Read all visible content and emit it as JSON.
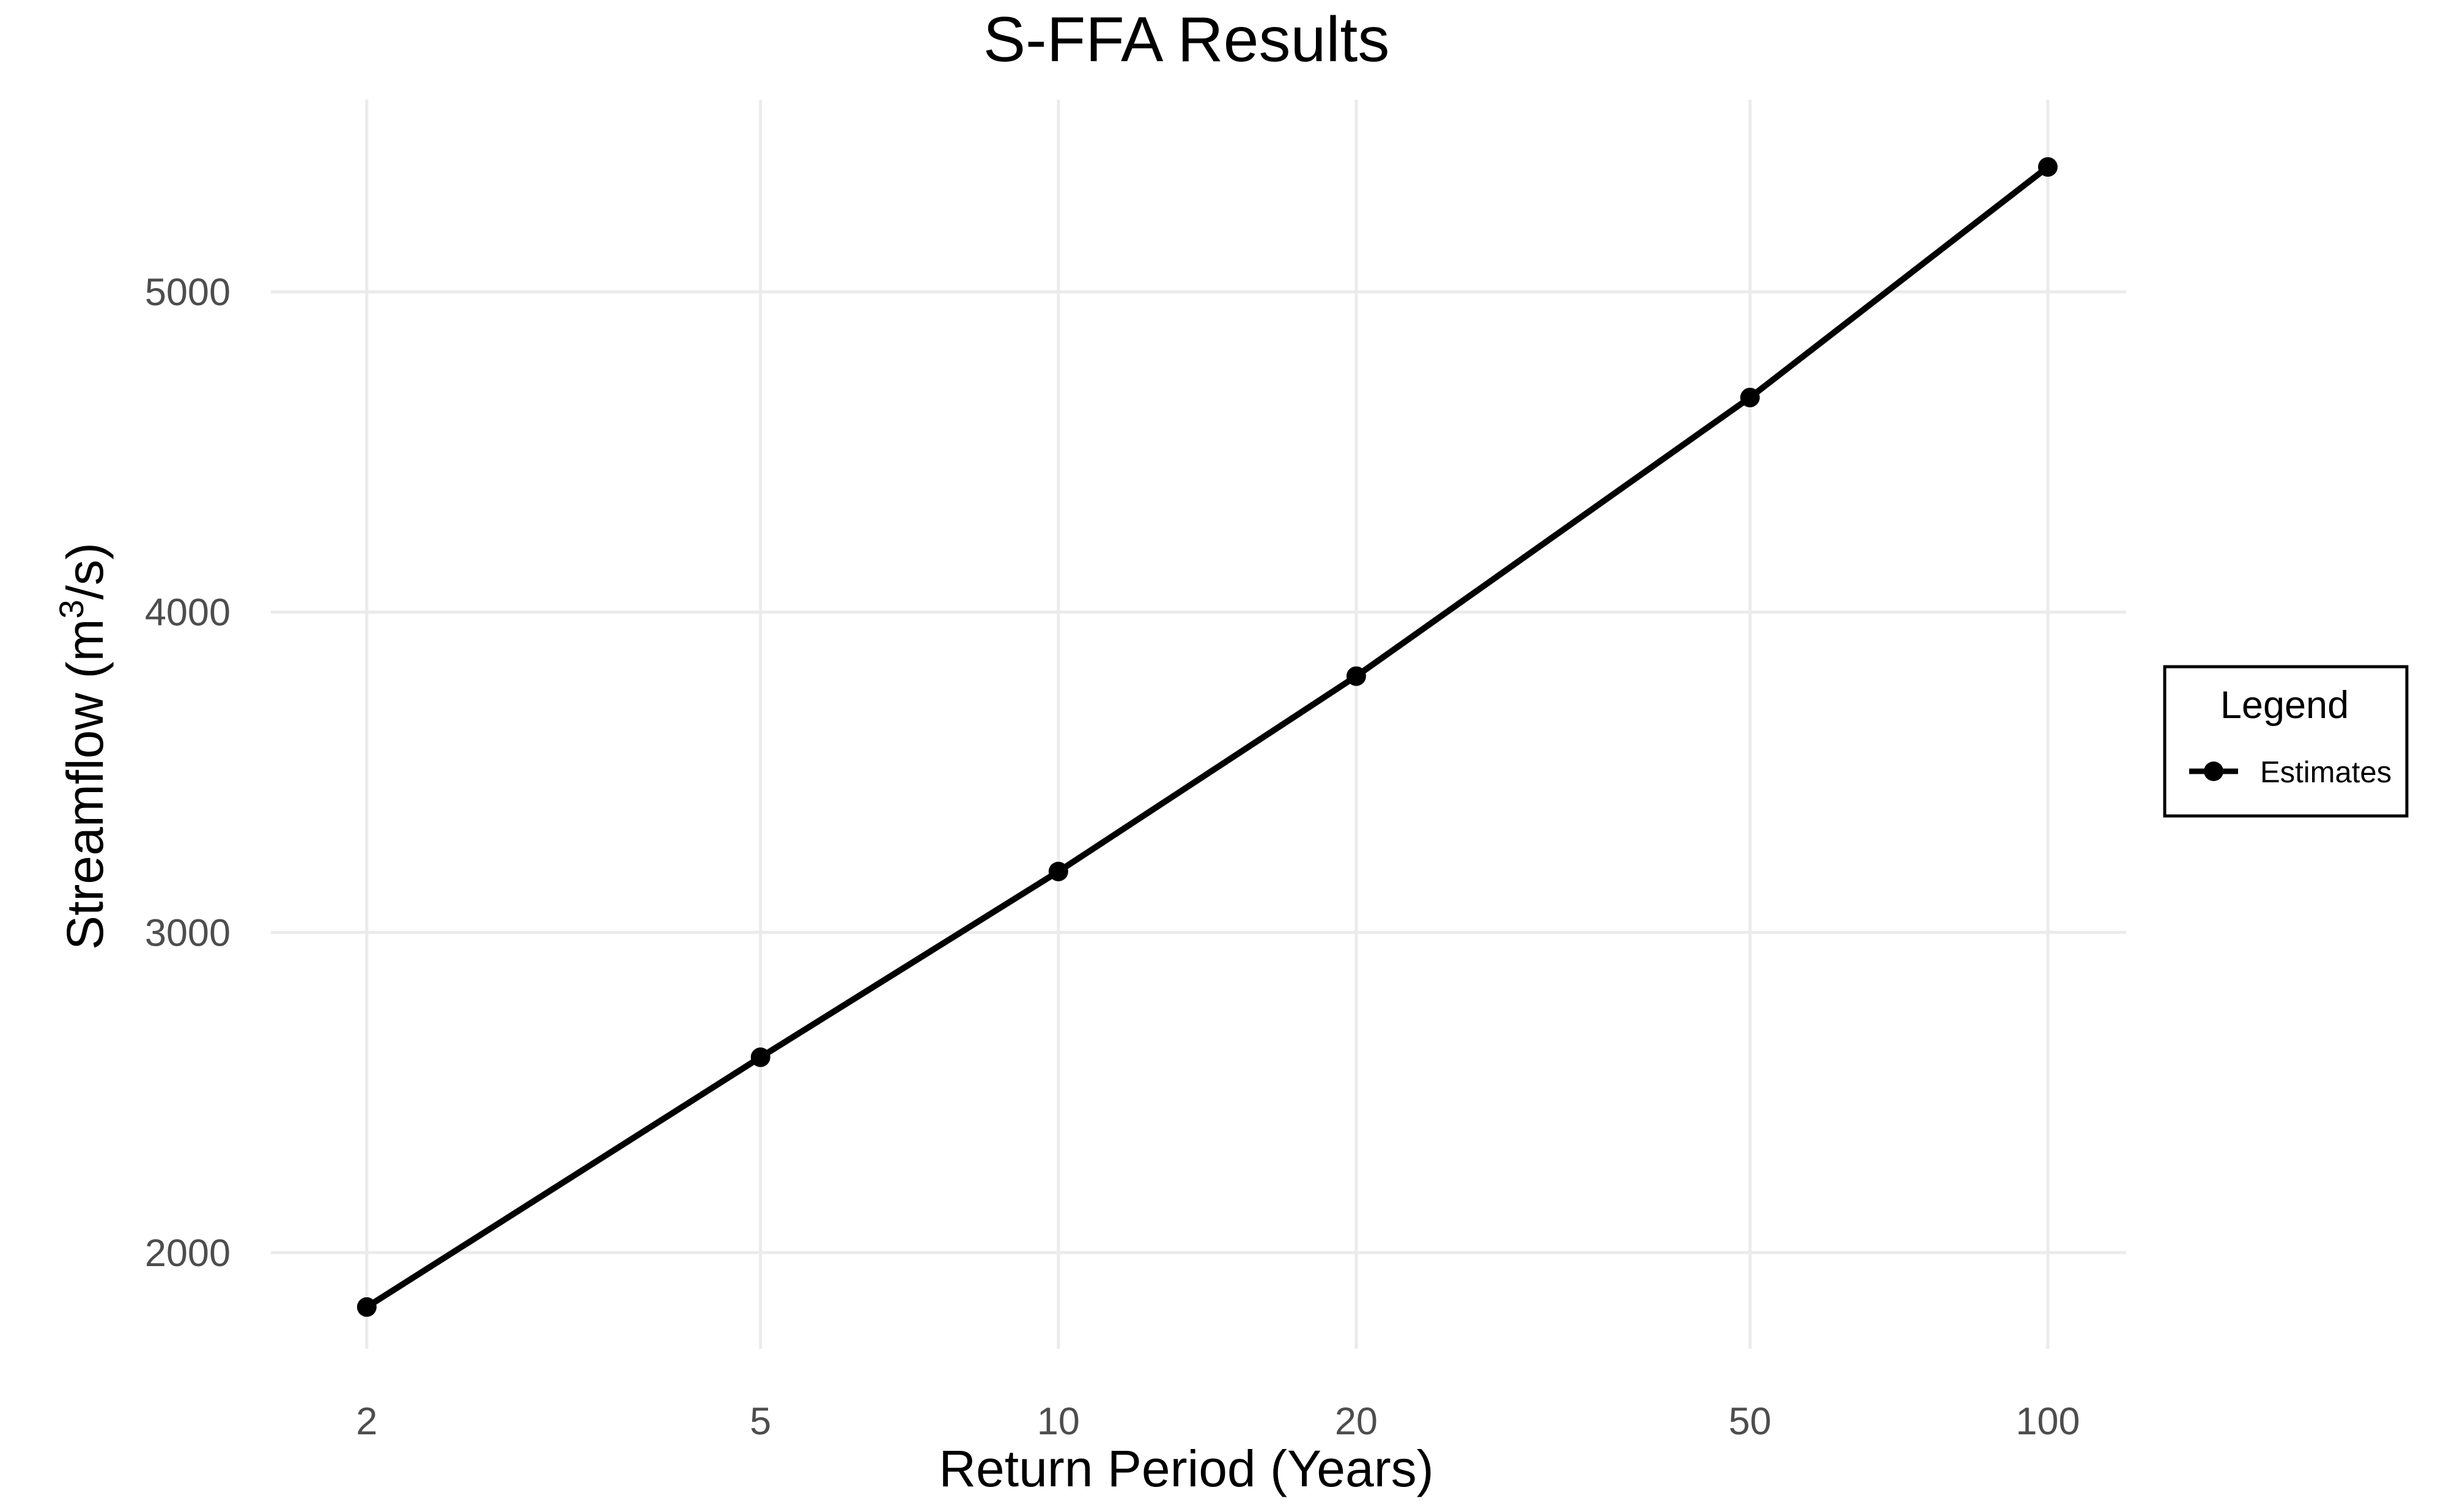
{
  "chart_data": {
    "type": "line",
    "title": "S-FFA Results",
    "xlabel": "Return Period (Years)",
    "ylabel": "Streamflow (m",
    "ylabel_superscript": "3",
    "ylabel_suffix": "/s)",
    "x_scale": "log",
    "x_ticks": [
      "2",
      "5",
      "10",
      "20",
      "50",
      "100"
    ],
    "y_ticks": [
      "2000",
      "3000",
      "4000",
      "5000"
    ],
    "ylim": [
      1700,
      5600
    ],
    "xlim": [
      1.6,
      120
    ],
    "grid": true,
    "legend": {
      "title": "Legend",
      "placement": "right"
    },
    "series": [
      {
        "name": "Estimates",
        "color": "#000000",
        "marker": "circle",
        "x": [
          2,
          5,
          10,
          20,
          50,
          100
        ],
        "values": [
          1830,
          2610,
          3190,
          3800,
          4670,
          5390
        ]
      }
    ]
  }
}
